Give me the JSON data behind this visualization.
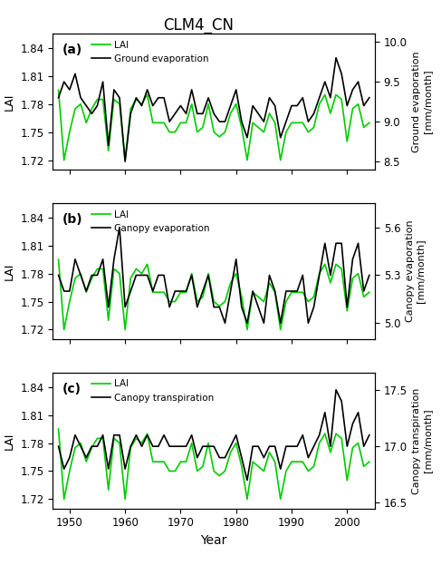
{
  "title": "CLM4_CN",
  "years": [
    1948,
    1949,
    1950,
    1951,
    1952,
    1953,
    1954,
    1955,
    1956,
    1957,
    1958,
    1959,
    1960,
    1961,
    1962,
    1963,
    1964,
    1965,
    1966,
    1967,
    1968,
    1969,
    1970,
    1971,
    1972,
    1973,
    1974,
    1975,
    1976,
    1977,
    1978,
    1979,
    1980,
    1981,
    1982,
    1983,
    1984,
    1985,
    1986,
    1987,
    1988,
    1989,
    1990,
    1991,
    1992,
    1993,
    1994,
    1995,
    1996,
    1997,
    1998,
    1999,
    2000,
    2001,
    2002,
    2003,
    2004
  ],
  "lai": [
    1.795,
    1.72,
    1.75,
    1.775,
    1.78,
    1.76,
    1.775,
    1.785,
    1.785,
    1.73,
    1.785,
    1.78,
    1.72,
    1.775,
    1.785,
    1.78,
    1.79,
    1.76,
    1.76,
    1.76,
    1.75,
    1.75,
    1.76,
    1.76,
    1.78,
    1.75,
    1.755,
    1.78,
    1.75,
    1.745,
    1.75,
    1.77,
    1.78,
    1.755,
    1.72,
    1.76,
    1.755,
    1.75,
    1.77,
    1.76,
    1.72,
    1.75,
    1.76,
    1.76,
    1.76,
    1.75,
    1.755,
    1.78,
    1.79,
    1.77,
    1.79,
    1.785,
    1.74,
    1.775,
    1.78,
    1.755,
    1.76
  ],
  "ground_evap": [
    9.3,
    9.5,
    9.4,
    9.6,
    9.3,
    9.2,
    9.1,
    9.2,
    9.5,
    8.7,
    9.4,
    9.3,
    8.5,
    9.1,
    9.3,
    9.2,
    9.4,
    9.2,
    9.3,
    9.3,
    9.0,
    9.1,
    9.2,
    9.1,
    9.4,
    9.1,
    9.1,
    9.3,
    9.1,
    9.0,
    9.0,
    9.2,
    9.4,
    9.0,
    8.8,
    9.2,
    9.1,
    9.0,
    9.3,
    9.2,
    8.8,
    9.0,
    9.2,
    9.2,
    9.3,
    9.0,
    9.1,
    9.3,
    9.5,
    9.3,
    9.8,
    9.6,
    9.2,
    9.4,
    9.5,
    9.2,
    9.3
  ],
  "canopy_evap": [
    5.3,
    5.2,
    5.2,
    5.4,
    5.3,
    5.2,
    5.3,
    5.3,
    5.4,
    5.1,
    5.4,
    5.6,
    5.1,
    5.2,
    5.3,
    5.3,
    5.3,
    5.2,
    5.3,
    5.3,
    5.1,
    5.2,
    5.2,
    5.2,
    5.3,
    5.1,
    5.2,
    5.3,
    5.1,
    5.1,
    5.0,
    5.2,
    5.4,
    5.1,
    5.0,
    5.2,
    5.1,
    5.0,
    5.3,
    5.2,
    5.0,
    5.2,
    5.2,
    5.2,
    5.3,
    5.0,
    5.1,
    5.3,
    5.5,
    5.3,
    5.5,
    5.5,
    5.1,
    5.4,
    5.5,
    5.2,
    5.3
  ],
  "canopy_transp": [
    17.0,
    16.8,
    16.9,
    17.1,
    17.0,
    16.9,
    17.0,
    17.0,
    17.1,
    16.8,
    17.1,
    17.1,
    16.8,
    17.0,
    17.1,
    17.0,
    17.1,
    17.0,
    17.0,
    17.1,
    17.0,
    17.0,
    17.0,
    17.0,
    17.1,
    16.9,
    17.0,
    17.0,
    17.0,
    16.9,
    16.9,
    17.0,
    17.1,
    16.9,
    16.7,
    17.0,
    17.0,
    16.9,
    17.0,
    17.0,
    16.8,
    17.0,
    17.0,
    17.0,
    17.1,
    16.9,
    17.0,
    17.1,
    17.3,
    17.0,
    17.5,
    17.4,
    17.0,
    17.2,
    17.3,
    17.0,
    17.1
  ],
  "lai_color": "#00cc00",
  "black_color": "#000000",
  "lai_ylim": [
    1.71,
    1.855
  ],
  "lai_yticks": [
    1.72,
    1.75,
    1.78,
    1.81,
    1.84
  ],
  "xlim": [
    1947,
    2005
  ],
  "xticks": [
    1950,
    1960,
    1970,
    1980,
    1990,
    2000
  ],
  "ground_evap_ylim": [
    8.4,
    10.1
  ],
  "ground_evap_yticks": [
    8.5,
    9.0,
    9.5,
    10.0
  ],
  "canopy_evap_ylim": [
    4.9,
    5.75
  ],
  "canopy_evap_yticks": [
    5.0,
    5.3,
    5.6
  ],
  "canopy_transp_ylim": [
    16.45,
    17.65
  ],
  "canopy_transp_yticks": [
    16.5,
    17.0,
    17.5
  ],
  "xlabel": "Year",
  "ylabel_lai": "LAI",
  "ylabel_a": "Ground evaporation\n[mm/month]",
  "ylabel_b": "Canopy evaporation\n[mm/month]",
  "ylabel_c": "Canopy transpiration\n[mm/month]",
  "panel_labels": [
    "(a)",
    "(b)",
    "(c)"
  ],
  "legend_lai": "LAI",
  "legend_a": "Ground evaporation",
  "legend_b": "Canopy evaporation",
  "legend_c": "Canopy transpiration"
}
